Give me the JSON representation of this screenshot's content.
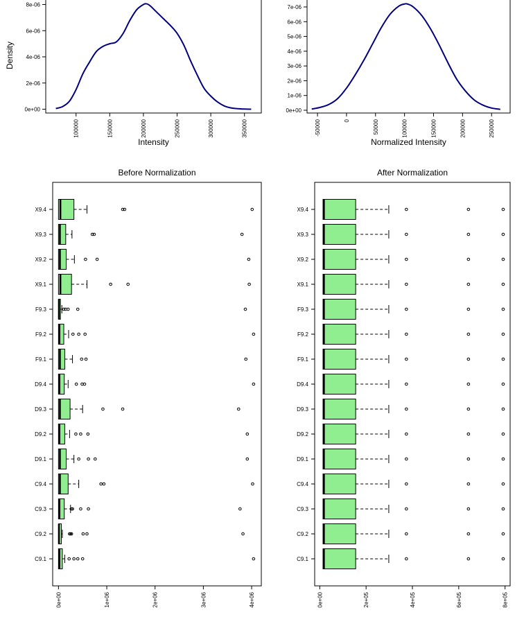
{
  "chart_data": [
    {
      "type": "line",
      "panel": "top-left",
      "title": "",
      "xlabel": "Intensity",
      "ylabel": "Density",
      "xlim": [
        55000,
        375000
      ],
      "ylim": [
        0,
        8.1e-06
      ],
      "x_ticks": [
        100000,
        150000,
        200000,
        250000,
        300000,
        350000
      ],
      "x_tick_labels": [
        "100000",
        "150000",
        "200000",
        "250000",
        "300000",
        "350000"
      ],
      "y_ticks": [
        0,
        2e-06,
        4e-06,
        6e-06,
        8e-06
      ],
      "y_tick_labels": [
        "0e+00",
        "2e-06",
        "4e-06",
        "6e-06",
        "8e-06"
      ],
      "color": "#000080",
      "x": [
        70000,
        80000,
        90000,
        100000,
        110000,
        120000,
        130000,
        140000,
        150000,
        160000,
        170000,
        180000,
        190000,
        200000,
        205000,
        210000,
        220000,
        230000,
        240000,
        250000,
        260000,
        270000,
        280000,
        290000,
        300000,
        310000,
        320000,
        330000,
        340000,
        350000,
        360000
      ],
      "y": [
        5e-08,
        2e-07,
        6e-07,
        1.5e-06,
        2.7e-06,
        3.6e-06,
        4.4e-06,
        4.8e-06,
        5e-06,
        5.15e-06,
        5.8e-06,
        6.8e-06,
        7.6e-06,
        8e-06,
        8.05e-06,
        7.9e-06,
        7.4e-06,
        6.9e-06,
        6.4e-06,
        5.8e-06,
        4.9e-06,
        3.7e-06,
        2.6e-06,
        1.6e-06,
        1e-06,
        5.5e-07,
        2.5e-07,
        1e-07,
        4e-08,
        1e-08,
        0.0
      ]
    },
    {
      "type": "line",
      "panel": "top-right",
      "title": "",
      "xlabel": "Normalized Intensity",
      "ylabel": "",
      "xlim": [
        -68000,
        282000
      ],
      "ylim": [
        0,
        7.3e-06
      ],
      "x_ticks": [
        -50000,
        0,
        50000,
        100000,
        150000,
        200000,
        250000
      ],
      "x_tick_labels": [
        "-50000",
        "0",
        "50000",
        "100000",
        "150000",
        "200000",
        "250000"
      ],
      "y_ticks": [
        0,
        1e-06,
        2e-06,
        3e-06,
        4e-06,
        5e-06,
        6e-06,
        7e-06
      ],
      "y_tick_labels": [
        "0e+00",
        "1e-06",
        "2e-06",
        "3e-06",
        "4e-06",
        "5e-06",
        "6e-06",
        "7e-06"
      ],
      "color": "#000080",
      "x": [
        -60000,
        -45000,
        -30000,
        -15000,
        0,
        15000,
        30000,
        45000,
        60000,
        75000,
        90000,
        100000,
        105000,
        115000,
        130000,
        145000,
        160000,
        175000,
        190000,
        205000,
        220000,
        235000,
        250000,
        265000
      ],
      "y": [
        8e-08,
        2e-07,
        4e-07,
        8e-07,
        1.5e-06,
        2.4e-06,
        3.4e-06,
        4.5e-06,
        5.6e-06,
        6.5e-06,
        7.05e-06,
        7.2e-06,
        7.2e-06,
        7e-06,
        6.4e-06,
        5.5e-06,
        4.4e-06,
        3.2e-06,
        2.1e-06,
        1.3e-06,
        7e-07,
        3.5e-07,
        1.5e-07,
        6e-08
      ]
    },
    {
      "type": "box",
      "panel": "bottom-left",
      "title": "Before Normalization",
      "orientation": "horizontal",
      "xlim": [
        -120000,
        4200000
      ],
      "x_ticks": [
        0,
        1000000,
        2000000,
        3000000,
        4000000
      ],
      "x_tick_labels": [
        "0e+00",
        "1e+06",
        "2e+06",
        "3e+06",
        "4e+06"
      ],
      "fill": "#90EE90",
      "categories": [
        "C9.1",
        "C9.2",
        "C9.3",
        "C9.4",
        "D9.1",
        "D9.2",
        "D9.3",
        "D9.4",
        "F9.1",
        "F9.2",
        "F9.3",
        "X9.1",
        "X9.2",
        "X9.3",
        "X9.4"
      ],
      "boxes": [
        {
          "min": 0,
          "q1": 0,
          "median": 20000,
          "q3": 80000,
          "max": 130000,
          "outliers": [
            220000,
            320000,
            400000,
            500000,
            4040000
          ]
        },
        {
          "min": 0,
          "q1": 0,
          "median": 10000,
          "q3": 60000,
          "max": 80000,
          "outliers": [
            230000,
            250000,
            270000,
            510000,
            590000,
            3820000
          ]
        },
        {
          "min": 0,
          "q1": 0,
          "median": 20000,
          "q3": 120000,
          "max": 250000,
          "outliers": [
            270000,
            290000,
            460000,
            620000,
            3760000
          ]
        },
        {
          "min": 0,
          "q1": 0,
          "median": 30000,
          "q3": 200000,
          "max": 420000,
          "outliers": [
            880000,
            940000,
            4020000
          ]
        },
        {
          "min": 0,
          "q1": 0,
          "median": 30000,
          "q3": 160000,
          "max": 320000,
          "outliers": [
            420000,
            620000,
            760000,
            3910000
          ]
        },
        {
          "min": 0,
          "q1": 0,
          "median": 20000,
          "q3": 130000,
          "max": 230000,
          "outliers": [
            360000,
            460000,
            610000,
            3910000
          ]
        },
        {
          "min": 0,
          "q1": 0,
          "median": 30000,
          "q3": 240000,
          "max": 500000,
          "outliers": [
            920000,
            1330000,
            3730000
          ]
        },
        {
          "min": 0,
          "q1": 0,
          "median": 20000,
          "q3": 120000,
          "max": 200000,
          "outliers": [
            370000,
            490000,
            540000,
            4040000
          ]
        },
        {
          "min": 0,
          "q1": 0,
          "median": 30000,
          "q3": 130000,
          "max": 290000,
          "outliers": [
            480000,
            570000,
            3880000
          ]
        },
        {
          "min": 0,
          "q1": 0,
          "median": 20000,
          "q3": 110000,
          "max": 210000,
          "outliers": [
            300000,
            420000,
            550000,
            4040000
          ]
        },
        {
          "min": 0,
          "q1": 0,
          "median": 10000,
          "q3": 40000,
          "max": 70000,
          "outliers": [
            110000,
            150000,
            200000,
            400000,
            3870000
          ]
        },
        {
          "min": 0,
          "q1": 0,
          "median": 40000,
          "q3": 270000,
          "max": 590000,
          "outliers": [
            1080000,
            1440000,
            3950000
          ]
        },
        {
          "min": 0,
          "q1": 0,
          "median": 30000,
          "q3": 160000,
          "max": 330000,
          "outliers": [
            560000,
            800000,
            3940000
          ]
        },
        {
          "min": 0,
          "q1": 0,
          "median": 30000,
          "q3": 150000,
          "max": 280000,
          "outliers": [
            700000,
            740000,
            3800000
          ]
        },
        {
          "min": 0,
          "q1": 0,
          "median": 40000,
          "q3": 320000,
          "max": 590000,
          "outliers": [
            1330000,
            1370000,
            4010000
          ]
        }
      ]
    },
    {
      "type": "box",
      "panel": "bottom-right",
      "title": "After Normalization",
      "orientation": "horizontal",
      "xlim": [
        -22000,
        822000
      ],
      "x_ticks": [
        0,
        200000,
        400000,
        600000,
        800000
      ],
      "x_tick_labels": [
        "0e+00",
        "2e+05",
        "4e+05",
        "6e+05",
        "8e+05"
      ],
      "fill": "#90EE90",
      "categories": [
        "C9.1",
        "C9.2",
        "C9.3",
        "C9.4",
        "D9.1",
        "D9.2",
        "D9.3",
        "D9.4",
        "F9.1",
        "F9.2",
        "F9.3",
        "X9.1",
        "X9.2",
        "X9.3",
        "X9.4"
      ],
      "boxes": [
        {
          "min": 0,
          "q1": 14000,
          "median": 18000,
          "q3": 155000,
          "max": 298000,
          "outliers": [
            374000,
            642000,
            792000
          ]
        },
        {
          "min": 0,
          "q1": 14000,
          "median": 18000,
          "q3": 155000,
          "max": 298000,
          "outliers": [
            374000,
            642000,
            792000
          ]
        },
        {
          "min": 0,
          "q1": 14000,
          "median": 18000,
          "q3": 155000,
          "max": 298000,
          "outliers": [
            374000,
            642000,
            792000
          ]
        },
        {
          "min": 0,
          "q1": 14000,
          "median": 18000,
          "q3": 155000,
          "max": 298000,
          "outliers": [
            374000,
            642000,
            792000
          ]
        },
        {
          "min": 0,
          "q1": 14000,
          "median": 18000,
          "q3": 155000,
          "max": 298000,
          "outliers": [
            374000,
            642000,
            792000
          ]
        },
        {
          "min": 0,
          "q1": 14000,
          "median": 18000,
          "q3": 155000,
          "max": 298000,
          "outliers": [
            374000,
            642000,
            792000
          ]
        },
        {
          "min": 0,
          "q1": 14000,
          "median": 18000,
          "q3": 155000,
          "max": 298000,
          "outliers": [
            374000,
            642000,
            792000
          ]
        },
        {
          "min": 0,
          "q1": 14000,
          "median": 18000,
          "q3": 155000,
          "max": 298000,
          "outliers": [
            374000,
            642000,
            792000
          ]
        },
        {
          "min": 0,
          "q1": 14000,
          "median": 18000,
          "q3": 155000,
          "max": 298000,
          "outliers": [
            374000,
            642000,
            792000
          ]
        },
        {
          "min": 0,
          "q1": 14000,
          "median": 18000,
          "q3": 155000,
          "max": 298000,
          "outliers": [
            374000,
            642000,
            792000
          ]
        },
        {
          "min": 0,
          "q1": 14000,
          "median": 18000,
          "q3": 155000,
          "max": 298000,
          "outliers": [
            374000,
            642000,
            792000
          ]
        },
        {
          "min": 0,
          "q1": 14000,
          "median": 18000,
          "q3": 155000,
          "max": 298000,
          "outliers": [
            374000,
            642000,
            792000
          ]
        },
        {
          "min": 0,
          "q1": 14000,
          "median": 18000,
          "q3": 155000,
          "max": 298000,
          "outliers": [
            374000,
            642000,
            792000
          ]
        },
        {
          "min": 0,
          "q1": 14000,
          "median": 18000,
          "q3": 155000,
          "max": 298000,
          "outliers": [
            374000,
            642000,
            792000
          ]
        },
        {
          "min": 0,
          "q1": 14000,
          "median": 18000,
          "q3": 155000,
          "max": 298000,
          "outliers": [
            374000,
            642000,
            792000
          ]
        }
      ]
    }
  ]
}
